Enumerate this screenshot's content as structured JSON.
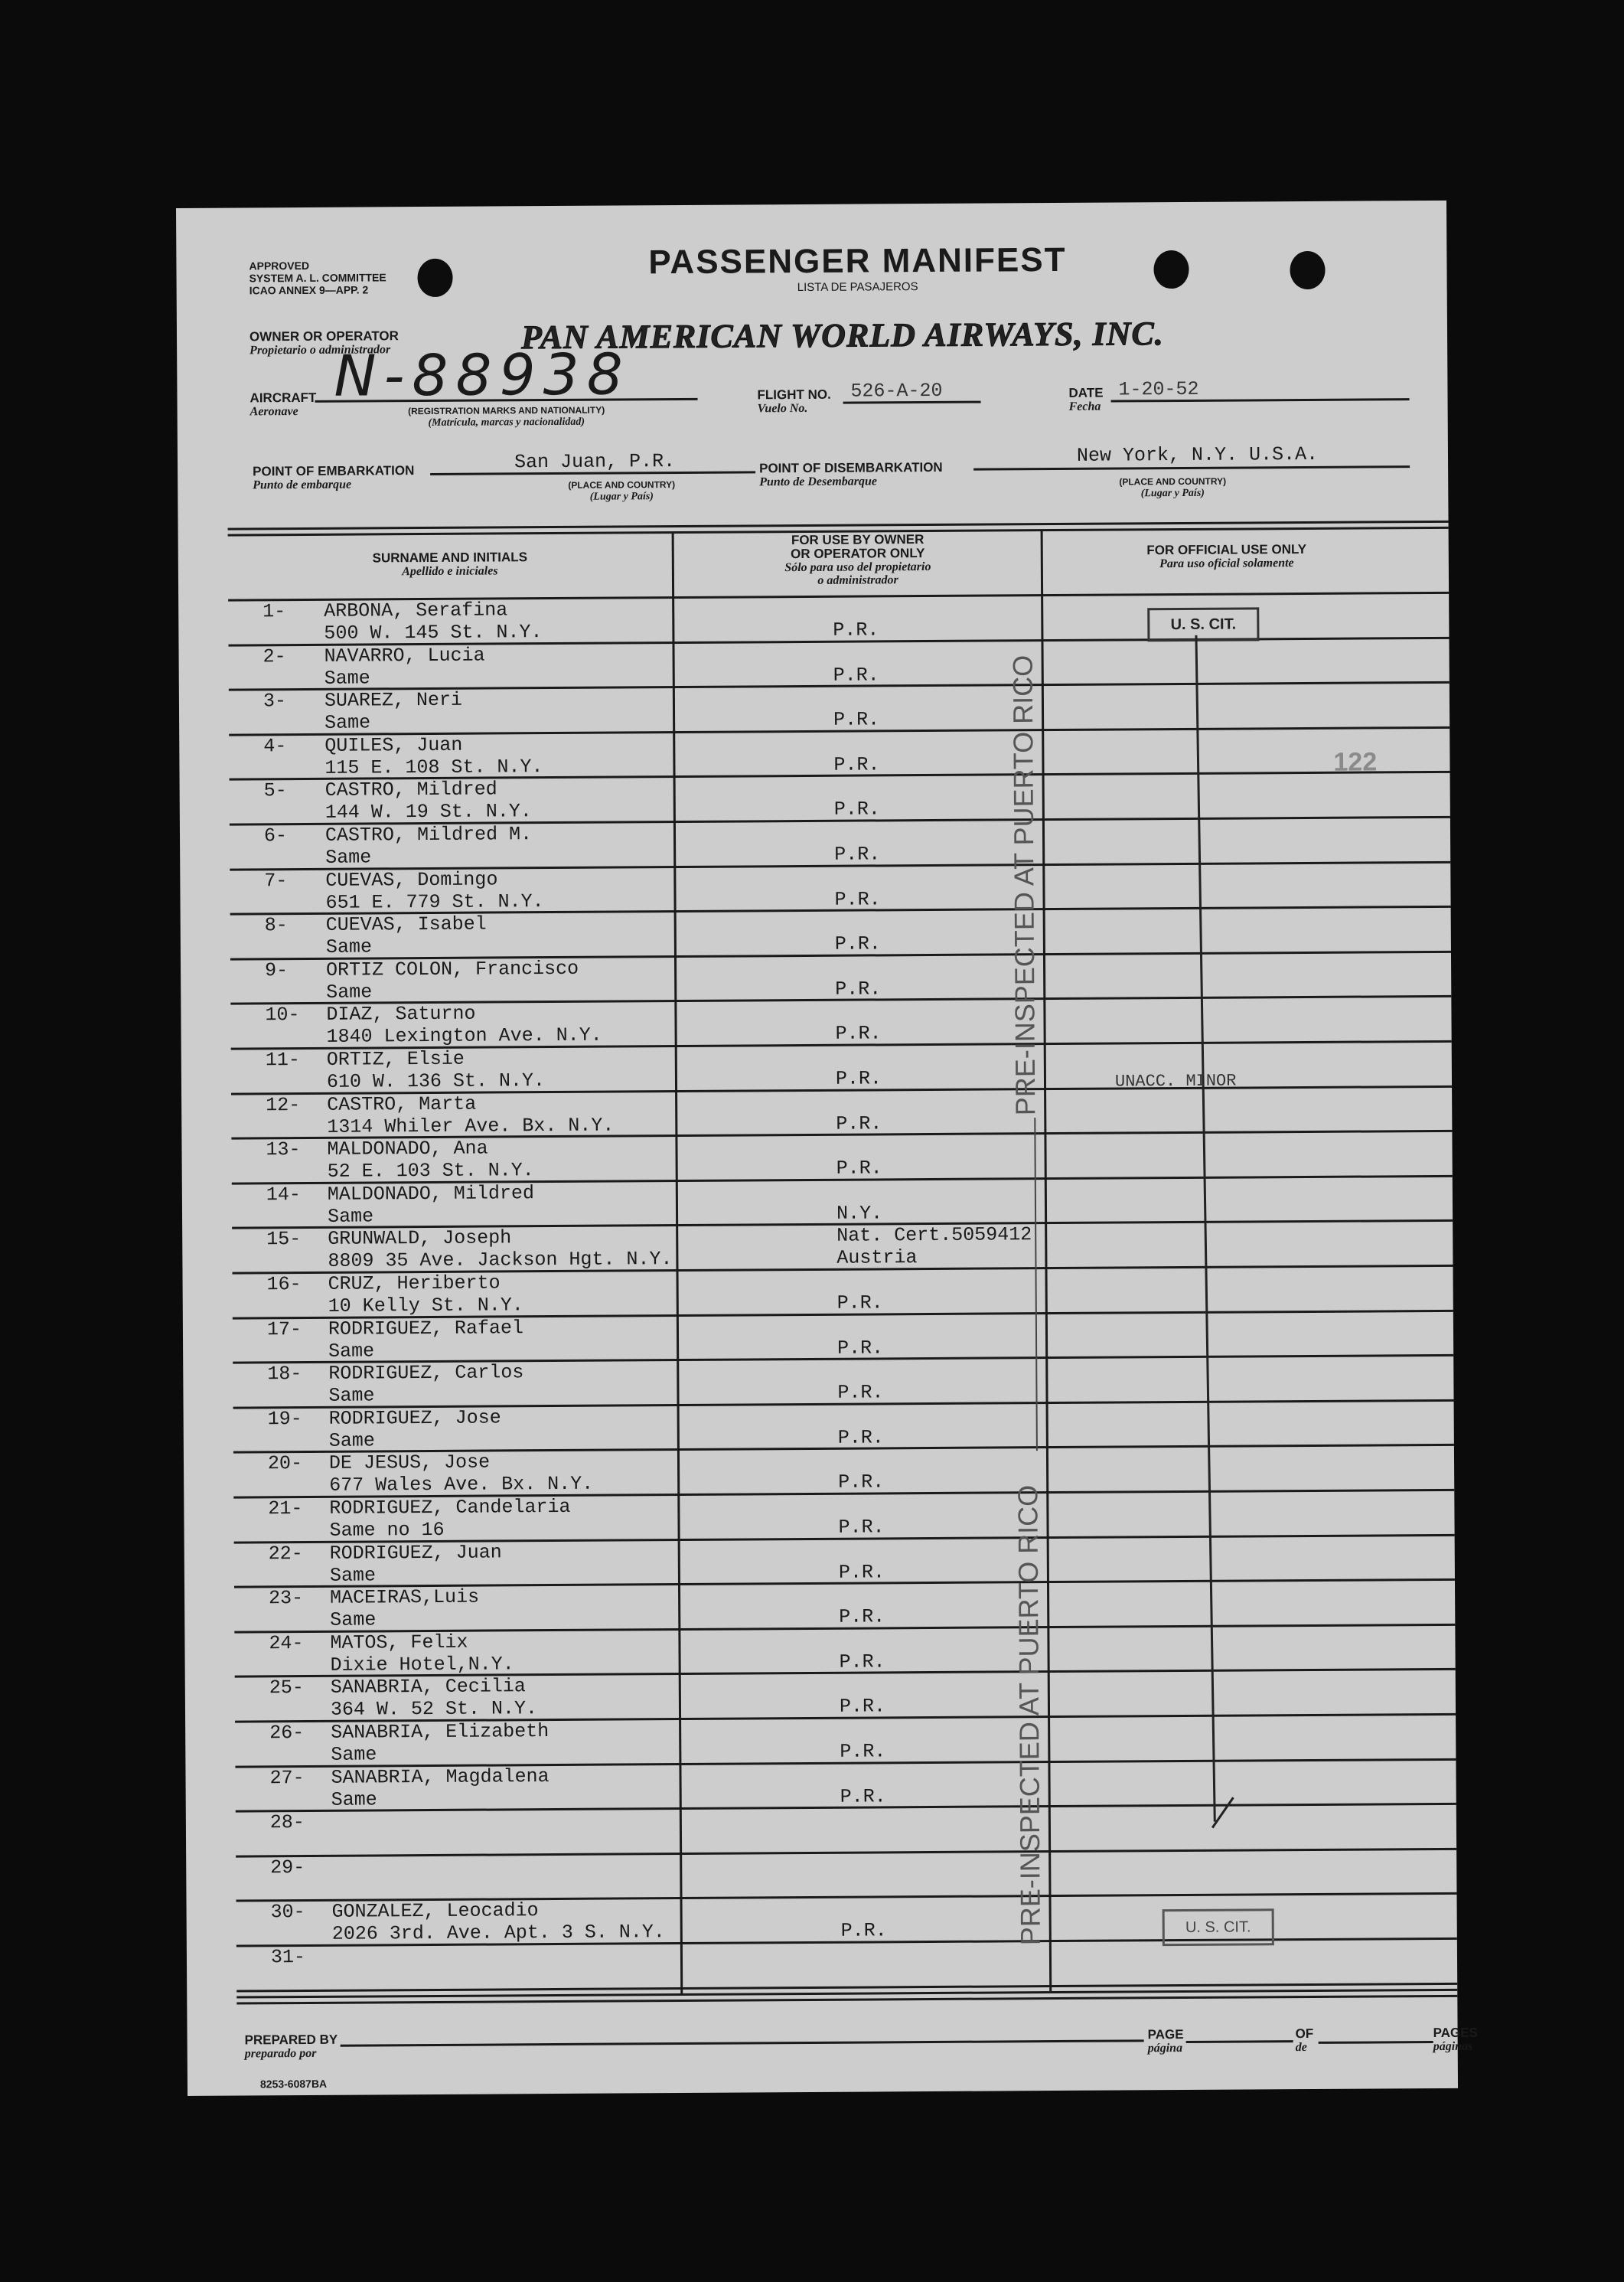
{
  "form": {
    "approval": [
      "APPROVED",
      "SYSTEM A. L. COMMITTEE",
      "ICAO ANNEX 9—APP. 2"
    ],
    "title": "PASSENGER MANIFEST",
    "subtitle": "LISTA DE PASAJEROS",
    "owner_label": "OWNER OR OPERATOR",
    "owner_label_es": "Propietario o administrador",
    "owner_value": "PAN AMERICAN WORLD AIRWAYS, INC.",
    "aircraft_label": "AIRCRAFT",
    "aircraft_label_es": "Aeronave",
    "aircraft_value": "N-88938",
    "registration_note": "(REGISTRATION MARKS AND NATIONALITY)",
    "registration_note_es": "(Matrícula, marcas y nacionalidad)",
    "flight_label": "FLIGHT NO.",
    "flight_label_es": "Vuelo No.",
    "flight_value": "526-A-20",
    "date_label": "DATE",
    "date_label_es": "Fecha",
    "date_value": "1-20-52",
    "embark_label": "POINT OF EMBARKATION",
    "embark_label_es": "Punto de embarque",
    "embark_value": "San Juan, P.R.",
    "disembark_label": "POINT OF DISEMBARKATION",
    "disembark_label_es": "Punto de Desembarque",
    "disembark_value": "New York, N.Y. U.S.A.",
    "place_note": "(PLACE AND COUNTRY)",
    "place_note_es": "(Lugar y País)"
  },
  "columns": {
    "surname": "SURNAME AND INITIALS",
    "surname_es": "Apellido e iniciales",
    "owner_use": [
      "FOR USE BY OWNER",
      "OR OPERATOR ONLY"
    ],
    "owner_use_es": [
      "Sólo para uso del propietario",
      "o administrador"
    ],
    "official": "FOR OFFICIAL USE ONLY",
    "official_es": "Para uso oficial solamente"
  },
  "rows": [
    {
      "num": "1-",
      "name": "ARBONA, Serafina",
      "address": "500 W. 145 St. N.Y.",
      "owner": [
        "P.R."
      ]
    },
    {
      "num": "2-",
      "name": "NAVARRO, Lucia",
      "address": "Same",
      "owner": [
        "P.R."
      ]
    },
    {
      "num": "3-",
      "name": "SUAREZ, Neri",
      "address": "Same",
      "owner": [
        "P.R."
      ]
    },
    {
      "num": "4-",
      "name": "QUILES, Juan",
      "address": "115 E. 108 St. N.Y.",
      "owner": [
        "P.R."
      ]
    },
    {
      "num": "5-",
      "name": "CASTRO, Mildred",
      "address": "144 W. 19 St. N.Y.",
      "owner": [
        "P.R."
      ]
    },
    {
      "num": "6-",
      "name": "CASTRO, Mildred M.",
      "address": "Same",
      "owner": [
        "P.R."
      ]
    },
    {
      "num": "7-",
      "name": "CUEVAS, Domingo",
      "address": "651 E. 779 St. N.Y.",
      "owner": [
        "P.R."
      ]
    },
    {
      "num": "8-",
      "name": "CUEVAS, Isabel",
      "address": "Same",
      "owner": [
        "P.R."
      ]
    },
    {
      "num": "9-",
      "name": "ORTIZ COLON, Francisco",
      "address": "Same",
      "owner": [
        "P.R."
      ]
    },
    {
      "num": "10-",
      "name": "DIAZ, Saturno",
      "address": "1840 Lexington Ave. N.Y.",
      "owner": [
        "P.R."
      ]
    },
    {
      "num": "11-",
      "name": "ORTIZ, Elsie",
      "address": "610 W. 136 St. N.Y.",
      "owner": [
        "P.R."
      ]
    },
    {
      "num": "12-",
      "name": "CASTRO, Marta",
      "address": "1314 Whiler Ave. Bx. N.Y.",
      "owner": [
        "P.R."
      ]
    },
    {
      "num": "13-",
      "name": "MALDONADO, Ana",
      "address": "52 E. 103 St. N.Y.",
      "owner": [
        "P.R."
      ]
    },
    {
      "num": "14-",
      "name": "MALDONADO, Mildred",
      "address": "Same",
      "owner": [
        "N.Y."
      ]
    },
    {
      "num": "15-",
      "name": "GRUNWALD, Joseph",
      "address": "8809 35 Ave. Jackson Hgt. N.Y.",
      "owner": [
        "Nat. Cert.5059412",
        "Austria"
      ]
    },
    {
      "num": "16-",
      "name": "CRUZ, Heriberto",
      "address": "10 Kelly St. N.Y.",
      "owner": [
        "P.R."
      ]
    },
    {
      "num": "17-",
      "name": "RODRIGUEZ, Rafael",
      "address": "Same",
      "owner": [
        "P.R."
      ]
    },
    {
      "num": "18-",
      "name": "RODRIGUEZ, Carlos",
      "address": "Same",
      "owner": [
        "P.R."
      ]
    },
    {
      "num": "19-",
      "name": "RODRIGUEZ, Jose",
      "address": "Same",
      "owner": [
        "P.R."
      ]
    },
    {
      "num": "20-",
      "name": "DE JESUS, Jose",
      "address": "677 Wales Ave. Bx. N.Y.",
      "owner": [
        "P.R."
      ]
    },
    {
      "num": "21-",
      "name": "RODRIGUEZ, Candelaria",
      "address": "Same no 16",
      "owner": [
        "P.R."
      ]
    },
    {
      "num": "22-",
      "name": "RODRIGUEZ, Juan",
      "address": "Same",
      "owner": [
        "P.R."
      ]
    },
    {
      "num": "23-",
      "name": "MACEIRAS,Luis",
      "address": "Same",
      "owner": [
        "P.R."
      ]
    },
    {
      "num": "24-",
      "name": "MATOS, Felix",
      "address": "Dixie Hotel,N.Y.",
      "owner": [
        "P.R."
      ]
    },
    {
      "num": "25-",
      "name": "SANABRIA, Cecilia",
      "address": "364 W. 52 St. N.Y.",
      "owner": [
        "P.R."
      ]
    },
    {
      "num": "26-",
      "name": "SANABRIA, Elizabeth",
      "address": "Same",
      "owner": [
        "P.R."
      ]
    },
    {
      "num": "27-",
      "name": "SANABRIA, Magdalena",
      "address": "Same",
      "owner": [
        "P.R."
      ]
    },
    {
      "num": "28-",
      "name": "",
      "address": "",
      "owner": []
    },
    {
      "num": "29-",
      "name": "",
      "address": "",
      "owner": []
    },
    {
      "num": "30-",
      "name": "GONZALEZ, Leocadio",
      "address": "2026 3rd. Ave. Apt. 3 S. N.Y.",
      "owner": [
        "P.R."
      ]
    },
    {
      "num": "31-",
      "name": "",
      "address": "",
      "owner": []
    }
  ],
  "official": {
    "stamp_top": "U. S. CIT.",
    "stamp_bottom": "U. S. CIT.",
    "number_stamp": "122",
    "note": "UNACC. MINOR",
    "inspection_stamp": "PRE-INSPECTED AT PUERTO RICO"
  },
  "footer": {
    "prepared_label": "PREPARED BY",
    "prepared_label_es": "preparado por",
    "page_label": "PAGE",
    "page_label_es": "página",
    "of_label": "OF",
    "of_label_es": "de",
    "pages_label": "PAGES",
    "pages_label_es": "páginas",
    "form_code": "8253-6087BA"
  }
}
